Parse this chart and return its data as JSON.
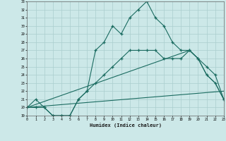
{
  "title": "",
  "xlabel": "Humidex (Indice chaleur)",
  "bg_color": "#cce8e8",
  "line_color": "#1a6b60",
  "xlim": [
    0,
    23
  ],
  "ylim": [
    19,
    33
  ],
  "xticks": [
    0,
    1,
    2,
    3,
    4,
    5,
    6,
    7,
    8,
    9,
    10,
    11,
    12,
    13,
    14,
    15,
    16,
    17,
    18,
    19,
    20,
    21,
    22,
    23
  ],
  "yticks": [
    19,
    20,
    21,
    22,
    23,
    24,
    25,
    26,
    27,
    28,
    29,
    30,
    31,
    32,
    33
  ],
  "curves": [
    {
      "x": [
        0,
        1,
        2,
        3,
        4,
        5,
        6,
        7,
        8,
        9,
        10,
        11,
        12,
        13,
        14,
        15,
        16,
        17,
        18,
        19,
        20,
        21,
        22,
        23
      ],
      "y": [
        20,
        21,
        20,
        19,
        19,
        19,
        21,
        22,
        27,
        28,
        30,
        29,
        31,
        32,
        33,
        31,
        30,
        28,
        27,
        27,
        26,
        25,
        24,
        21
      ],
      "marker": true
    },
    {
      "x": [
        0,
        1,
        2,
        3,
        4,
        5,
        6,
        7,
        8,
        9,
        10,
        11,
        12,
        13,
        14,
        15,
        16,
        17,
        18,
        19,
        20,
        21,
        22,
        23
      ],
      "y": [
        20,
        20,
        20,
        19,
        19,
        19,
        21,
        22,
        23,
        24,
        25,
        26,
        27,
        27,
        27,
        27,
        26,
        26,
        26,
        27,
        26,
        24,
        23,
        21
      ],
      "marker": true
    },
    {
      "x": [
        0,
        19,
        20,
        21,
        22,
        23
      ],
      "y": [
        20,
        27,
        26,
        24,
        23,
        21
      ],
      "marker": false
    },
    {
      "x": [
        0,
        23
      ],
      "y": [
        20,
        22
      ],
      "marker": false
    }
  ],
  "grid_color": "#aacece",
  "marker_style": "+"
}
